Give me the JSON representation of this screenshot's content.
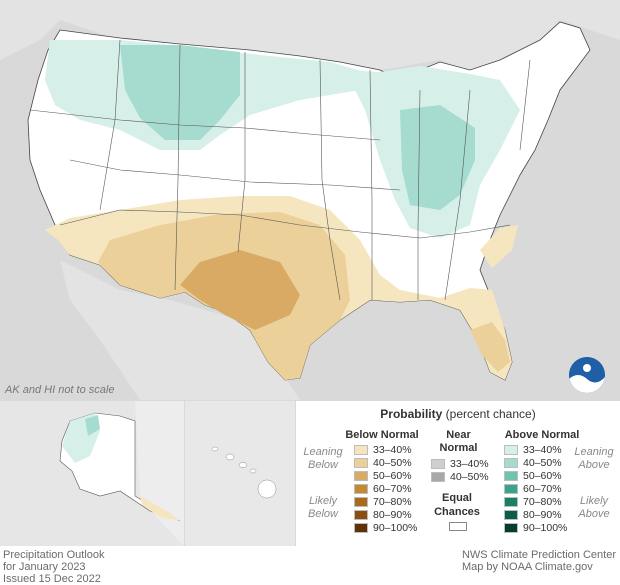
{
  "map": {
    "scale_note": "AK and HI not to scale",
    "logo": "NOAA"
  },
  "legend": {
    "title_bold": "Probability",
    "title_rest": " (percent chance)",
    "below_header": "Below Normal",
    "near_header_1": "Near",
    "near_header_2": "Normal",
    "above_header": "Above Normal",
    "leaning_1": "Leaning",
    "below_word": "Below",
    "above_word": "Above",
    "likely_1": "Likely",
    "equal_1": "Equal",
    "equal_2": "Chances",
    "below_items": [
      {
        "label": "33–40%",
        "color": "#f6e6c0"
      },
      {
        "label": "40–50%",
        "color": "#ecd09a"
      },
      {
        "label": "50–60%",
        "color": "#d9aa63"
      },
      {
        "label": "60–70%",
        "color": "#c58934"
      },
      {
        "label": "70–80%",
        "color": "#a96a1c"
      },
      {
        "label": "80–90%",
        "color": "#8a4f10"
      },
      {
        "label": "90–100%",
        "color": "#5e3206"
      }
    ],
    "near_items": [
      {
        "label": "33–40%",
        "color": "#cfcfcf"
      },
      {
        "label": "40–50%",
        "color": "#a8a8a8"
      }
    ],
    "above_items": [
      {
        "label": "33–40%",
        "color": "#d6efe9"
      },
      {
        "label": "40–50%",
        "color": "#a6dccf"
      },
      {
        "label": "50–60%",
        "color": "#6fc4b0"
      },
      {
        "label": "60–70%",
        "color": "#3aa38c"
      },
      {
        "label": "70–80%",
        "color": "#1a7f68"
      },
      {
        "label": "80–90%",
        "color": "#0b5e4c"
      },
      {
        "label": "90–100%",
        "color": "#053d31"
      }
    ]
  },
  "footer": {
    "left_1": "Precipitation Outlook",
    "left_2": "for January 2023",
    "left_3": "Issued 15 Dec 2022",
    "right_1": "NWS Climate Prediction Center",
    "right_2": "Map by NOAA Climate.gov"
  }
}
